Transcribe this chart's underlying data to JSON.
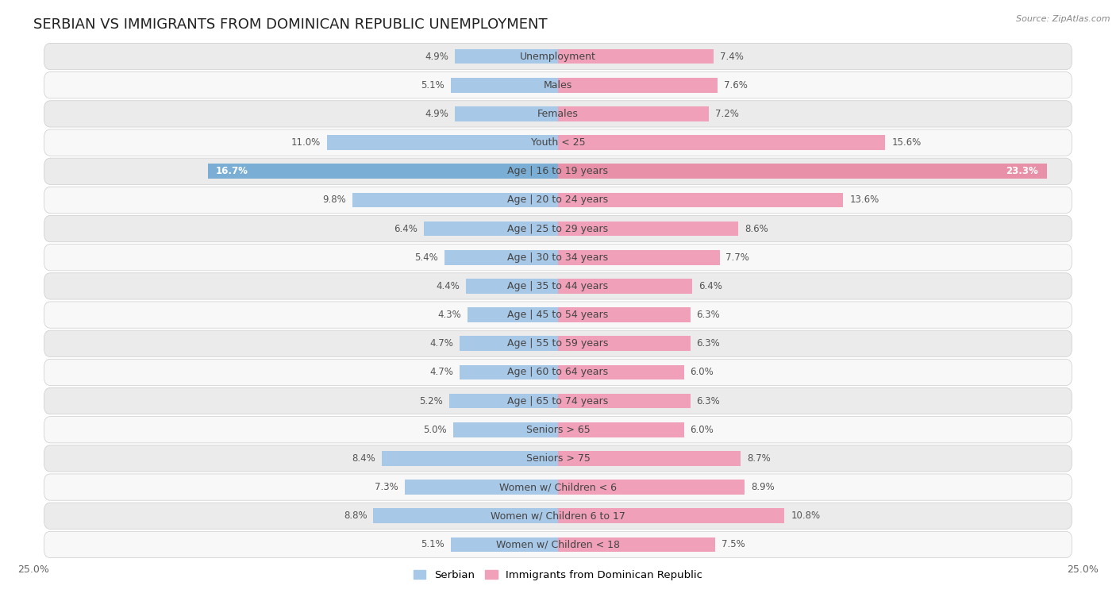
{
  "title": "SERBIAN VS IMMIGRANTS FROM DOMINICAN REPUBLIC UNEMPLOYMENT",
  "source": "Source: ZipAtlas.com",
  "categories": [
    "Unemployment",
    "Males",
    "Females",
    "Youth < 25",
    "Age | 16 to 19 years",
    "Age | 20 to 24 years",
    "Age | 25 to 29 years",
    "Age | 30 to 34 years",
    "Age | 35 to 44 years",
    "Age | 45 to 54 years",
    "Age | 55 to 59 years",
    "Age | 60 to 64 years",
    "Age | 65 to 74 years",
    "Seniors > 65",
    "Seniors > 75",
    "Women w/ Children < 6",
    "Women w/ Children 6 to 17",
    "Women w/ Children < 18"
  ],
  "serbian": [
    4.9,
    5.1,
    4.9,
    11.0,
    16.7,
    9.8,
    6.4,
    5.4,
    4.4,
    4.3,
    4.7,
    4.7,
    5.2,
    5.0,
    8.4,
    7.3,
    8.8,
    5.1
  ],
  "dominican": [
    7.4,
    7.6,
    7.2,
    15.6,
    23.3,
    13.6,
    8.6,
    7.7,
    6.4,
    6.3,
    6.3,
    6.0,
    6.3,
    6.0,
    8.7,
    8.9,
    10.8,
    7.5
  ],
  "x_max": 25.0,
  "serbian_color": "#a8c8e8",
  "dominican_color": "#f0a0b8",
  "serbian_label": "Serbian",
  "dominican_label": "Immigrants from Dominican Republic",
  "bar_height": 0.52,
  "row_bg_color": "#e8e8e8",
  "row_border_color": "#cccccc",
  "title_fontsize": 13,
  "label_fontsize": 9,
  "tick_fontsize": 9,
  "value_fontsize": 8.5,
  "highlight_serbian_color": "#6090c0",
  "highlight_dominican_color": "#e06080"
}
